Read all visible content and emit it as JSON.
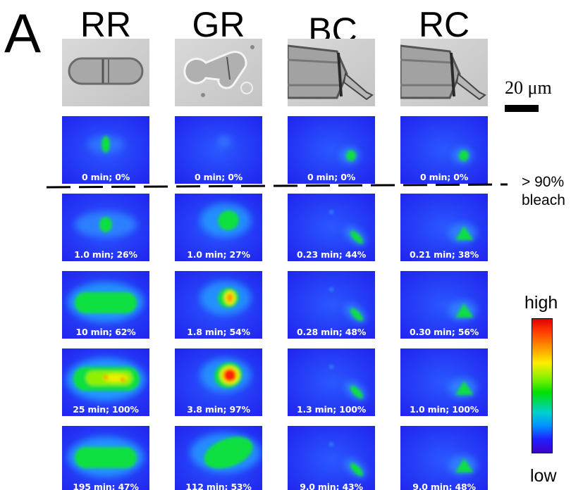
{
  "panel_letter": "A",
  "columns": [
    {
      "header": "RR",
      "brightfield": "rod",
      "rows": [
        {
          "label": "0 min; 0%",
          "spot": "center-small",
          "intensity": 0.45
        },
        {
          "label": "1.0 min; 26%",
          "spot": "center-round",
          "intensity": 0.55
        },
        {
          "label": "10 min; 62%",
          "spot": "center-rod",
          "intensity": 0.6
        },
        {
          "label": "25 min; 100%",
          "spot": "center-rod-bright",
          "intensity": 1.0
        },
        {
          "label": "195 min; 47%",
          "spot": "center-rod",
          "intensity": 0.6
        }
      ]
    },
    {
      "header": "GR",
      "brightfield": "curved",
      "rows": [
        {
          "label": "0 min; 0%",
          "spot": "center-faint",
          "intensity": 0.2
        },
        {
          "label": "1.0 min; 27%",
          "spot": "blob",
          "intensity": 0.55
        },
        {
          "label": "1.8 min; 54%",
          "spot": "blob",
          "intensity": 0.8
        },
        {
          "label": "3.8 min; 97%",
          "spot": "blob-large",
          "intensity": 1.0
        },
        {
          "label": "112 min; 53%",
          "spot": "blob-wide",
          "intensity": 0.55
        }
      ]
    },
    {
      "header": "BC",
      "brightfield": "branch",
      "rows": [
        {
          "label": "0 min; 0%",
          "spot": "tip",
          "intensity": 0.45
        },
        {
          "label": "0.23 min; 44%",
          "spot": "tip-streak",
          "intensity": 0.55
        },
        {
          "label": "0.28 min; 48%",
          "spot": "tip-streak",
          "intensity": 0.55
        },
        {
          "label": "1.3 min; 100%",
          "spot": "tip-streak",
          "intensity": 0.6
        },
        {
          "label": "9.0 min; 43%",
          "spot": "tip-streak",
          "intensity": 0.55
        }
      ]
    },
    {
      "header": "RC",
      "brightfield": "branch",
      "rows": [
        {
          "label": "0 min; 0%",
          "spot": "tip",
          "intensity": 0.5
        },
        {
          "label": "0.21 min; 38%",
          "spot": "tip-tri",
          "intensity": 0.6
        },
        {
          "label": "0.30 min; 56%",
          "spot": "tip-tri",
          "intensity": 0.55
        },
        {
          "label": "1.0 min; 100%",
          "spot": "tip-tri",
          "intensity": 0.6
        },
        {
          "label": "9.0 min; 48%",
          "spot": "tip-tri",
          "intensity": 0.55
        }
      ]
    }
  ],
  "scale_bar": {
    "label": "20 μm"
  },
  "bleach_annotation": {
    "line1": "> 90%",
    "line2": "bleach"
  },
  "colorbar": {
    "high_label": "high",
    "low_label": "low"
  }
}
